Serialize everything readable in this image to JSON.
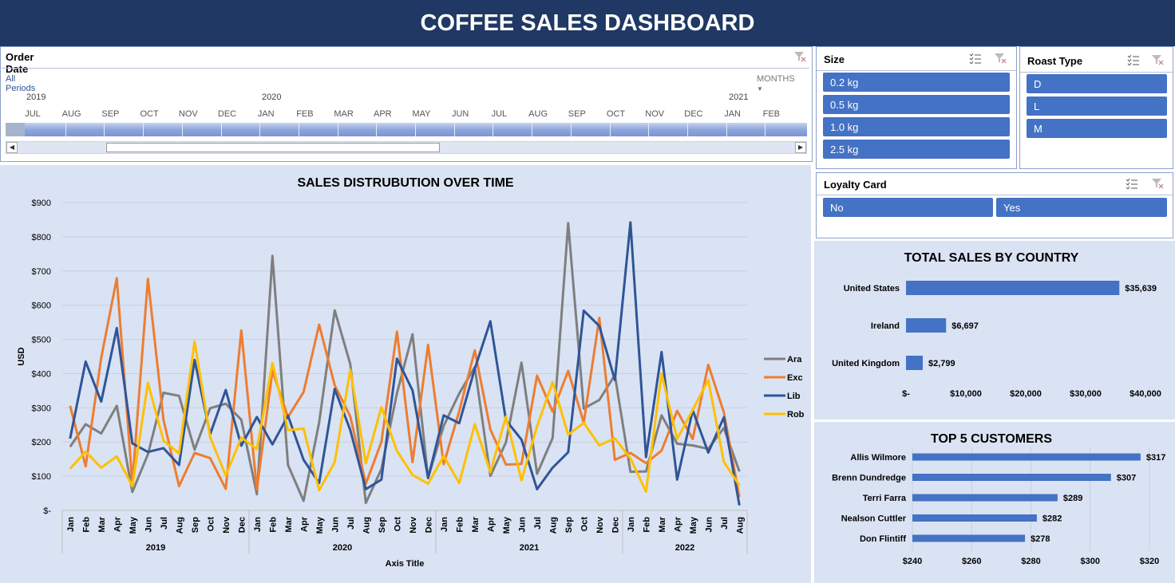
{
  "title": "COFFEE SALES DASHBOARD",
  "timeline": {
    "title": "Order Date",
    "periods": "All Periods",
    "level": "MONTHS",
    "years": [
      "2019",
      "2020",
      "2021"
    ],
    "months": [
      "JUL",
      "AUG",
      "SEP",
      "OCT",
      "NOV",
      "DEC",
      "JAN",
      "FEB",
      "MAR",
      "APR",
      "MAY",
      "JUN",
      "JUL",
      "AUG",
      "SEP",
      "OCT",
      "NOV",
      "DEC",
      "JAN",
      "FEB"
    ]
  },
  "size_slicer": {
    "title": "Size",
    "items": [
      "0.2 kg",
      "0.5 kg",
      "1.0 kg",
      "2.5 kg"
    ]
  },
  "roast_slicer": {
    "title": "Roast Type",
    "items": [
      "D",
      "L",
      "M"
    ]
  },
  "loyalty_slicer": {
    "title": "Loyalty Card",
    "items": [
      "No",
      "Yes"
    ]
  },
  "colors": {
    "Ara": "#7f7f7f",
    "Exc": "#ed7d31",
    "Lib": "#2f5597",
    "Rob": "#ffc000",
    "bar": "#4472c4",
    "header": "#1f3864",
    "chart_bg": "#dae3f3"
  },
  "chart_data": [
    {
      "type": "line",
      "title": "SALES DISTRUBUTION OVER TIME",
      "xlabel": "Axis Title",
      "ylabel": "USD",
      "ylim": [
        0,
        900
      ],
      "yticks": [
        "$-",
        "$100",
        "$200",
        "$300",
        "$400",
        "$500",
        "$600",
        "$700",
        "$800",
        "$900"
      ],
      "years": [
        "2019",
        "2020",
        "2021",
        "2022"
      ],
      "categories": [
        "Jan",
        "Feb",
        "Mar",
        "Apr",
        "May",
        "Jun",
        "Jul",
        "Aug",
        "Sep",
        "Oct",
        "Nov",
        "Dec",
        "Jan",
        "Feb",
        "Mar",
        "Apr",
        "May",
        "Jun",
        "Jul",
        "Aug",
        "Sep",
        "Oct",
        "Nov",
        "Dec",
        "Jan",
        "Feb",
        "Mar",
        "Apr",
        "May",
        "Jun",
        "Jul",
        "Aug",
        "Sep",
        "Oct",
        "Nov",
        "Dec",
        "Jan",
        "Feb",
        "Mar",
        "Apr",
        "May",
        "Jun",
        "Jul",
        "Aug"
      ],
      "legend_position": "right",
      "series": [
        {
          "name": "Ara",
          "values": [
            186,
            252,
            225,
            306,
            54,
            164,
            344,
            335,
            178,
            299,
            312,
            265,
            47,
            744,
            133,
            28,
            257,
            585,
            428,
            22,
            121,
            343,
            515,
            95,
            247,
            342,
            419,
            101,
            199,
            432,
            107,
            212,
            840,
            298,
            323,
            396,
            113,
            114,
            278,
            195,
            190,
            180,
            241,
            114
          ]
        },
        {
          "name": "Exc",
          "values": [
            306,
            129,
            446,
            679,
            80,
            677,
            265,
            71,
            168,
            153,
            63,
            526,
            61,
            408,
            273,
            346,
            543,
            366,
            275,
            78,
            200,
            523,
            141,
            484,
            135,
            290,
            468,
            237,
            134,
            136,
            394,
            289,
            408,
            257,
            563,
            148,
            168,
            138,
            175,
            291,
            209,
            426,
            287,
            39
          ]
        },
        {
          "name": "Lib",
          "values": [
            210,
            435,
            318,
            533,
            196,
            171,
            182,
            133,
            440,
            223,
            352,
            189,
            273,
            193,
            277,
            148,
            80,
            355,
            235,
            62,
            90,
            444,
            351,
            95,
            278,
            255,
            414,
            553,
            264,
            207,
            62,
            125,
            170,
            584,
            539,
            381,
            842,
            156,
            463,
            90,
            293,
            169,
            272,
            15
          ]
        },
        {
          "name": "Rob",
          "values": [
            122,
            172,
            125,
            158,
            71,
            373,
            204,
            167,
            494,
            214,
            102,
            213,
            179,
            431,
            235,
            239,
            59,
            141,
            411,
            138,
            302,
            174,
            104,
            78,
            159,
            80,
            252,
            112,
            274,
            88,
            246,
            375,
            221,
            256,
            190,
            211,
            152,
            55,
            400,
            209,
            294,
            381,
            142,
            73
          ]
        }
      ]
    },
    {
      "type": "bar",
      "title": "TOTAL SALES BY COUNTRY",
      "categories": [
        "United States",
        "Ireland",
        "United Kingdom"
      ],
      "values": [
        35639,
        6697,
        2799
      ],
      "labels": [
        "$35,639",
        "$6,697",
        "$2,799"
      ],
      "xlim": [
        0,
        40000
      ],
      "xticks": [
        "$-",
        "$10,000",
        "$20,000",
        "$30,000",
        "$40,000"
      ]
    },
    {
      "type": "bar",
      "title": "TOP 5 CUSTOMERS",
      "categories": [
        "Allis Wilmore",
        "Brenn Dundredge",
        "Terri Farra",
        "Nealson Cuttler",
        "Don Flintiff"
      ],
      "values": [
        317,
        307,
        289,
        282,
        278
      ],
      "labels": [
        "$317",
        "$307",
        "$289",
        "$282",
        "$278"
      ],
      "xlim": [
        240,
        320
      ],
      "xticks": [
        "$240",
        "$260",
        "$280",
        "$300",
        "$320"
      ]
    }
  ]
}
